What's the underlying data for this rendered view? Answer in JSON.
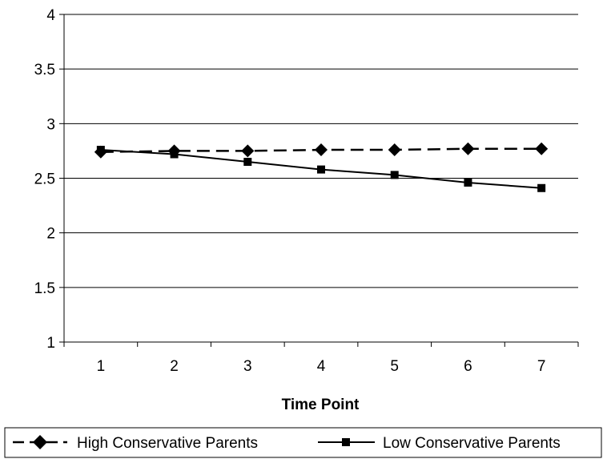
{
  "chart_data": {
    "type": "line",
    "title": "",
    "xlabel": "Time Point",
    "ylabel": "",
    "categories": [
      "1",
      "2",
      "3",
      "4",
      "5",
      "6",
      "7"
    ],
    "ylim": [
      1,
      4
    ],
    "yticks": [
      "1",
      "1.5",
      "2",
      "2.5",
      "3",
      "3.5",
      "4"
    ],
    "grid": "horizontal",
    "legend_position": "bottom",
    "series": [
      {
        "name": "High Conservative Parents",
        "values": [
          2.74,
          2.75,
          2.75,
          2.76,
          2.76,
          2.77,
          2.77
        ],
        "line_style": "dashed",
        "marker": "diamond",
        "color": "#000000"
      },
      {
        "name": "Low Conservative Parents",
        "values": [
          2.76,
          2.72,
          2.65,
          2.58,
          2.53,
          2.46,
          2.41
        ],
        "line_style": "solid",
        "marker": "square",
        "color": "#000000"
      }
    ]
  }
}
